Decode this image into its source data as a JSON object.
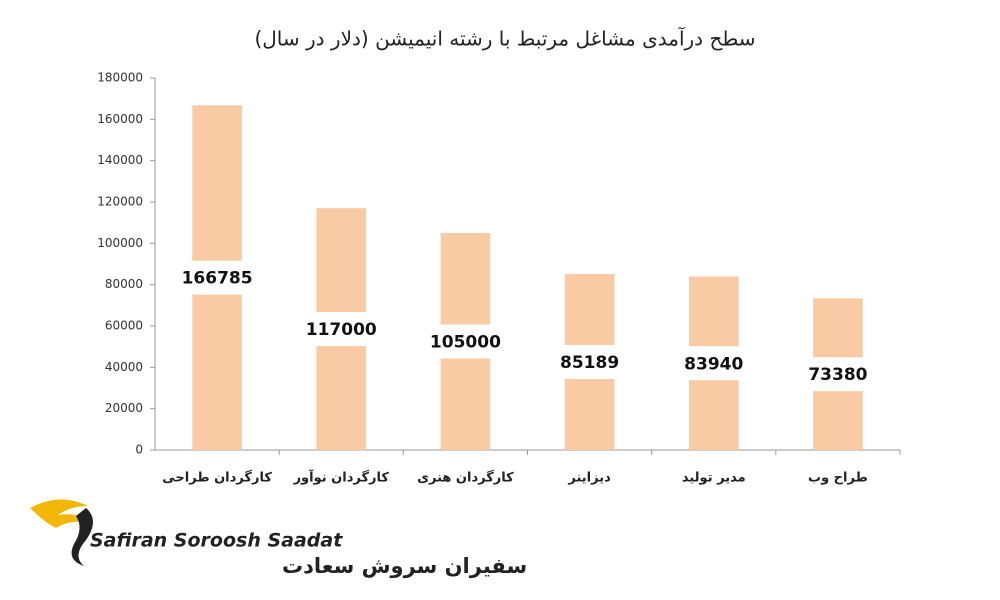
{
  "chart_data": {
    "type": "bar",
    "title": "سطح درآمدی مشاغل مرتبط با رشته انیمیشن (دلار در سال)",
    "categories": [
      "کارگردان طراحی",
      "کارگردان نوآور",
      "کارگردان هنری",
      "دیزاینر",
      "مدیر تولید",
      "طراح وب"
    ],
    "values": [
      166785,
      117000,
      105000,
      85189,
      83940,
      73380
    ],
    "color": "#f9cba4",
    "ylim": [
      0,
      180000
    ],
    "yticks": [
      0,
      20000,
      40000,
      60000,
      80000,
      100000,
      120000,
      140000,
      160000,
      180000
    ],
    "grid": false,
    "data_labels": true
  },
  "logo": {
    "name_en": "Safiran Soroosh Saadat",
    "name_fa": "سفیران سروش سعادت"
  }
}
